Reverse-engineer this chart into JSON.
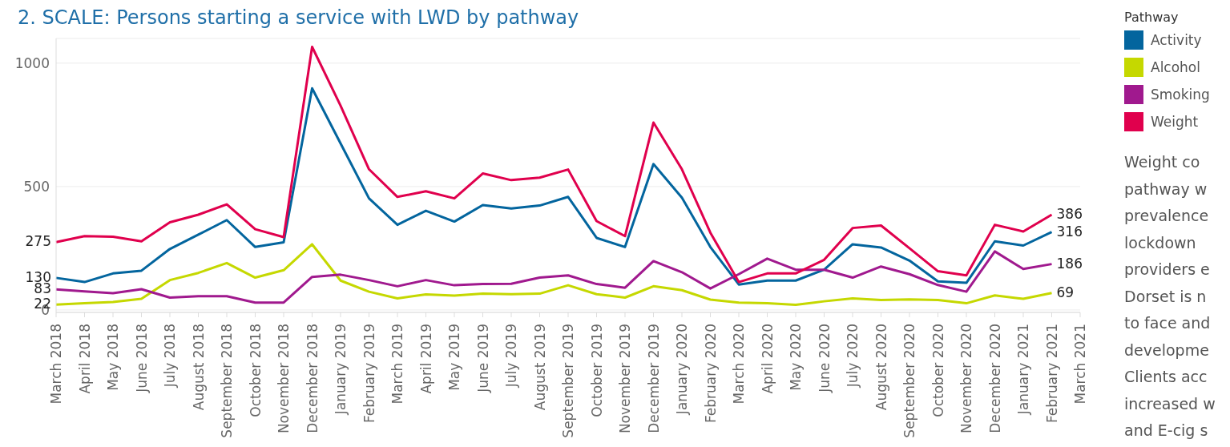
{
  "chart_data": {
    "type": "line",
    "title": "2. SCALE: Persons starting a service with LWD by pathway",
    "categories": [
      "March 2018",
      "April 2018",
      "May 2018",
      "June 2018",
      "July 2018",
      "August 2018",
      "September 2018",
      "October 2018",
      "November 2018",
      "December 2018",
      "January 2019",
      "February 2019",
      "March 2019",
      "April 2019",
      "May 2019",
      "June 2019",
      "July 2019",
      "August 2019",
      "September 2019",
      "October 2019",
      "November 2019",
      "December 2019",
      "January 2020",
      "February 2020",
      "March 2020",
      "April 2020",
      "May 2020",
      "June 2020",
      "July 2020",
      "August 2020",
      "September 2020",
      "October 2020",
      "November 2020",
      "December 2020",
      "January 2021",
      "February 2021",
      "March 2021"
    ],
    "series": [
      {
        "name": "Activity",
        "color": "#03659e",
        "values": [
          130,
          113,
          148,
          159,
          247,
          305,
          364,
          255,
          274,
          898,
          675,
          452,
          345,
          402,
          358,
          425,
          411,
          423,
          458,
          292,
          255,
          591,
          455,
          255,
          103,
          119,
          119,
          163,
          266,
          253,
          200,
          116,
          110,
          278,
          261,
          316,
          null
        ],
        "value_labels": [
          "130",
          null,
          null,
          null,
          null,
          null,
          null,
          null,
          null,
          null,
          null,
          null,
          null,
          null,
          null,
          null,
          null,
          null,
          null,
          null,
          null,
          null,
          null,
          null,
          null,
          null,
          null,
          null,
          null,
          null,
          null,
          null,
          null,
          null,
          null,
          "316",
          null
        ]
      },
      {
        "name": "Alcohol",
        "color": "#c5d800",
        "values": [
          22,
          27,
          32,
          45,
          121,
          150,
          190,
          131,
          161,
          266,
          119,
          74,
          47,
          63,
          58,
          66,
          64,
          66,
          100,
          64,
          50,
          96,
          80,
          42,
          30,
          27,
          21,
          35,
          47,
          40,
          43,
          40,
          27,
          59,
          45,
          69,
          null
        ],
        "value_labels": [
          "22",
          null,
          null,
          null,
          null,
          null,
          null,
          null,
          null,
          null,
          null,
          null,
          null,
          null,
          null,
          null,
          null,
          null,
          null,
          null,
          null,
          null,
          null,
          null,
          null,
          null,
          null,
          null,
          null,
          null,
          null,
          null,
          null,
          null,
          null,
          "69",
          null
        ]
      },
      {
        "name": "Smoking",
        "color": "#a0198e",
        "values": [
          83,
          75,
          68,
          84,
          50,
          56,
          56,
          30,
          30,
          134,
          143,
          121,
          96,
          121,
          100,
          105,
          106,
          131,
          140,
          105,
          90,
          198,
          153,
          87,
          145,
          208,
          163,
          163,
          131,
          176,
          145,
          101,
          74,
          237,
          166,
          186,
          null
        ],
        "value_labels": [
          "83",
          null,
          null,
          null,
          null,
          null,
          null,
          null,
          null,
          null,
          null,
          null,
          null,
          null,
          null,
          null,
          null,
          null,
          null,
          null,
          null,
          null,
          null,
          null,
          null,
          null,
          null,
          null,
          null,
          null,
          null,
          null,
          null,
          null,
          null,
          "186",
          null
        ]
      },
      {
        "name": "Weight",
        "color": "#e0004d",
        "values": [
          275,
          299,
          297,
          278,
          355,
          386,
          428,
          327,
          295,
          1066,
          828,
          570,
          458,
          481,
          452,
          553,
          526,
          536,
          569,
          360,
          299,
          759,
          570,
          313,
          113,
          148,
          148,
          203,
          332,
          342,
          250,
          157,
          140,
          345,
          318,
          386,
          null
        ],
        "value_labels": [
          "275",
          null,
          null,
          null,
          null,
          null,
          null,
          null,
          null,
          null,
          null,
          null,
          null,
          null,
          null,
          null,
          null,
          null,
          null,
          null,
          null,
          null,
          null,
          null,
          null,
          null,
          null,
          null,
          null,
          null,
          null,
          null,
          null,
          null,
          null,
          "386",
          null
        ]
      }
    ],
    "ylim": [
      -10,
      1100
    ],
    "yticks": [
      0,
      500,
      1000
    ],
    "grid": "y",
    "legend": "right",
    "legend_title": "Pathway",
    "marker": "none",
    "line_style": "solid",
    "annotations": [
      "Weight co",
      "pathway w",
      "prevalence",
      "lockdown",
      "providers e",
      "Dorset is n",
      "to face and",
      "developme",
      "Clients acc",
      "increased w",
      "and E-cig s"
    ]
  }
}
